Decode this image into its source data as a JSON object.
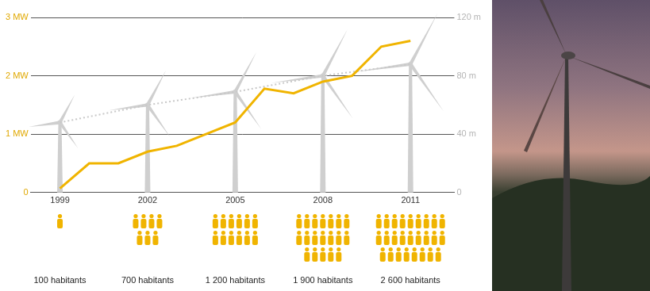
{
  "chart_data": {
    "type": "line",
    "x": [
      1999,
      2000,
      2001,
      2002,
      2003,
      2004,
      2005,
      2006,
      2007,
      2008,
      2009,
      2010,
      2011
    ],
    "series": [
      {
        "color": "#f0b400",
        "values": [
          0.07,
          0.5,
          0.5,
          0.7,
          0.8,
          1.0,
          1.2,
          1.78,
          1.7,
          1.9,
          2.0,
          2.5,
          2.6
        ]
      },
      {
        "color": "#c8c8c8",
        "axis": "y2",
        "line_style": "dotted",
        "x": [
          1999,
          2002,
          2005,
          2008,
          2011
        ],
        "values": [
          48,
          60,
          69,
          80,
          88
        ]
      }
    ],
    "xlim": [
      1998,
      2012.5
    ],
    "xticks": [
      1999,
      2002,
      2005,
      2008,
      2011
    ],
    "ylim": [
      0,
      3
    ],
    "yticks": [
      0,
      {
        "value": 1,
        "label": "1 MW"
      },
      {
        "value": 2,
        "label": "2 MW"
      },
      {
        "value": 3,
        "label": "3 MW"
      }
    ],
    "y2lim": [
      0,
      120
    ],
    "y2ticks": [
      0,
      {
        "value": 40,
        "label": "40 m"
      },
      {
        "value": 80,
        "label": "80 m"
      },
      {
        "value": 120,
        "label": "120 m"
      }
    ],
    "grid": true,
    "population": {
      "x": [
        1999,
        2002,
        2005,
        2008,
        2011
      ],
      "values": [
        100,
        700,
        1200,
        1900,
        2600
      ],
      "labels": [
        "100 habitants",
        "700 habitants",
        "1 200 habitants",
        "1 900 habitants",
        "2 600 habitants"
      ]
    }
  }
}
